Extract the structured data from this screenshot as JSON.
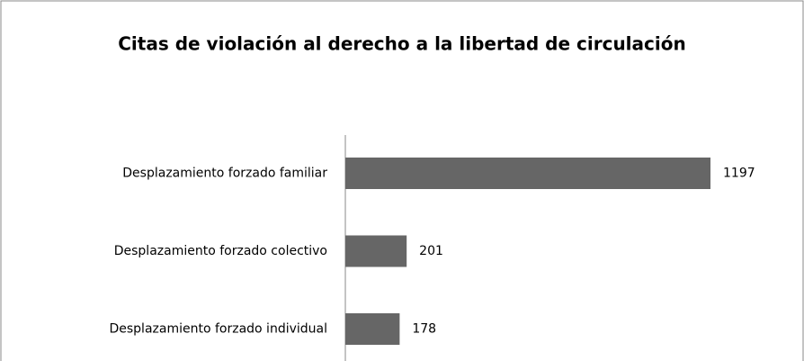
{
  "chart_data": {
    "type": "bar",
    "orientation": "horizontal",
    "title": "Citas de violación al derecho a la libertad de circulación",
    "categories": [
      "Desplazamiento forzado familiar",
      "Desplazamiento forzado colectivo",
      "Desplazamiento forzado individual"
    ],
    "values": [
      1197,
      201,
      178
    ],
    "color": "#666666"
  }
}
